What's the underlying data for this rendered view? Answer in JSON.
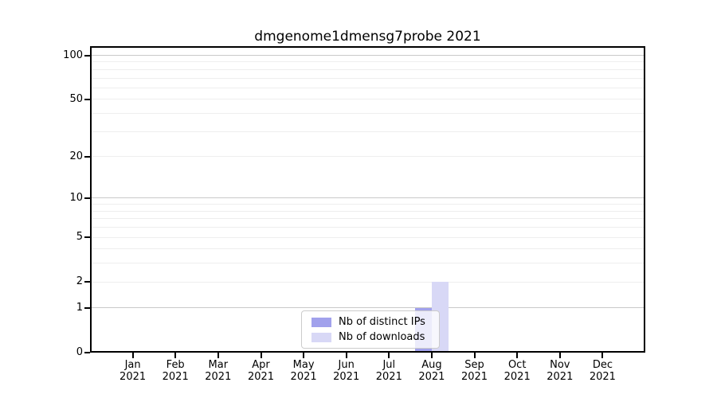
{
  "chart_data": {
    "type": "bar",
    "title": "dmgenome1dmensg7probe 2021",
    "categories": [
      "Jan",
      "Feb",
      "Mar",
      "Apr",
      "May",
      "Jun",
      "Jul",
      "Aug",
      "Sep",
      "Oct",
      "Nov",
      "Dec"
    ],
    "category_year": "2021",
    "series": [
      {
        "name": "Nb of distinct IPs",
        "color": "#a1a1ec",
        "values": [
          0,
          0,
          0,
          0,
          0,
          0,
          0,
          1,
          0,
          0,
          0,
          0
        ]
      },
      {
        "name": "Nb of downloads",
        "color": "#d8d8f6",
        "values": [
          0,
          0,
          0,
          0,
          0,
          0,
          0,
          2,
          0,
          0,
          0,
          0
        ]
      }
    ],
    "yscale": "log1p",
    "ylim": [
      0,
      115
    ],
    "yticks": [
      0,
      1,
      2,
      5,
      10,
      20,
      50,
      100
    ],
    "major_gridlines": [
      1,
      10,
      100
    ],
    "minor_gridlines": [
      2,
      3,
      4,
      5,
      6,
      7,
      8,
      9,
      20,
      30,
      40,
      50,
      60,
      70,
      80,
      90
    ],
    "grid": true,
    "legend_position": "lower center",
    "colors": {
      "axis": "#000000",
      "major_grid": "#c9c9c9",
      "minor_grid": "#eeeeee",
      "background": "#ffffff"
    }
  }
}
